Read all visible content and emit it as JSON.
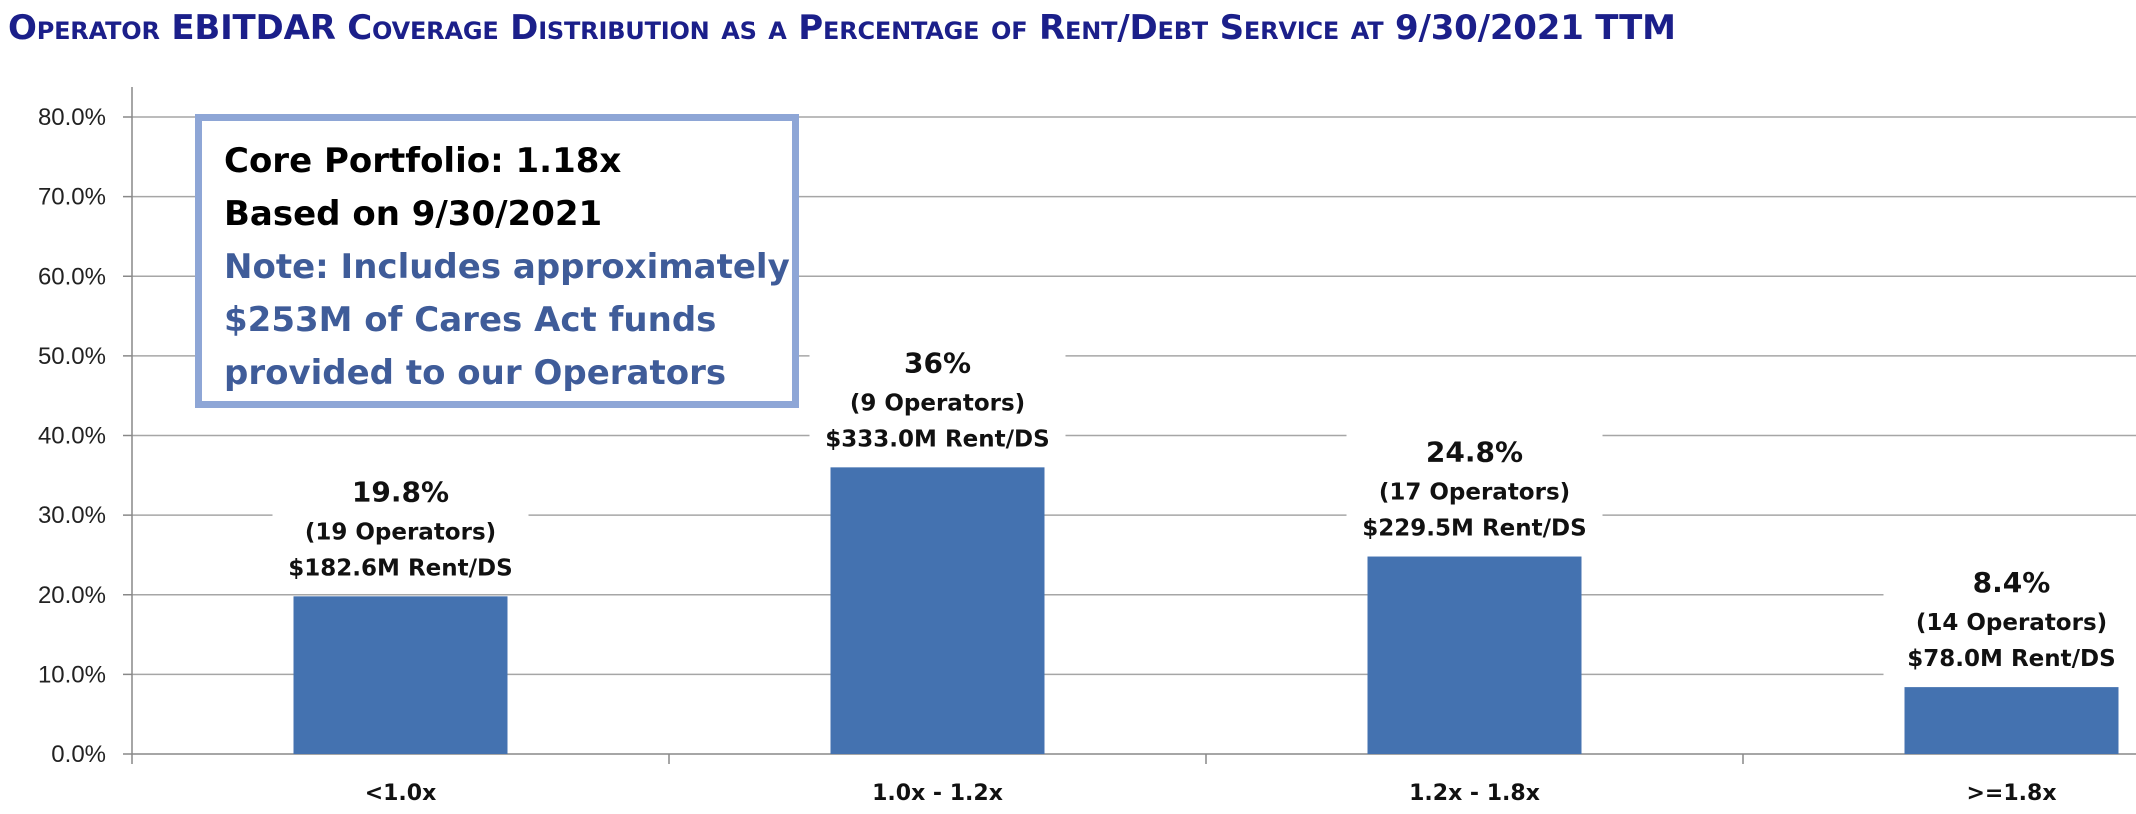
{
  "title": "Operator EBITDAR Coverage Distribution as a Percentage of Rent/Debt Service at 9/30/2021 TTM",
  "note_box": {
    "line1": "Core Portfolio:  1.18x",
    "line2": "Based on 9/30/2021",
    "line3": "Note: Includes approximately",
    "line4": "$253M of Cares Act funds",
    "line5": "provided to our Operators"
  },
  "colors": {
    "bar": "#4472b0",
    "title": "#1b1f8a",
    "note_border": "#8ea6d6",
    "note_text": "#3f5c99",
    "grid": "#a6a6a6"
  },
  "chart_data": {
    "type": "bar",
    "categories": [
      "<1.0x",
      "1.0x - 1.2x",
      "1.2x - 1.8x",
      ">=1.8x"
    ],
    "values": [
      19.8,
      36,
      24.8,
      8.4
    ],
    "data_labels": [
      "19.8%",
      "36%",
      "24.8%",
      "8.4%"
    ],
    "operators": [
      "(19 Operators)",
      "(9 Operators)",
      "(17 Operators)",
      "(14 Operators)"
    ],
    "rent_ds": [
      "$182.6M Rent/DS",
      "$333.0M Rent/DS",
      "$229.5M Rent/DS",
      "$78.0M Rent/DS"
    ],
    "yticks": [
      "0.0%",
      "10.0%",
      "20.0%",
      "30.0%",
      "40.0%",
      "50.0%",
      "60.0%",
      "70.0%",
      "80.0%"
    ],
    "ylim": [
      0,
      80
    ],
    "grid": true,
    "legend": "none",
    "title": "Operator EBITDAR Coverage Distribution as a Percentage of Rent/Debt Service at 9/30/2021 TTM",
    "xlabel": "",
    "ylabel": ""
  }
}
